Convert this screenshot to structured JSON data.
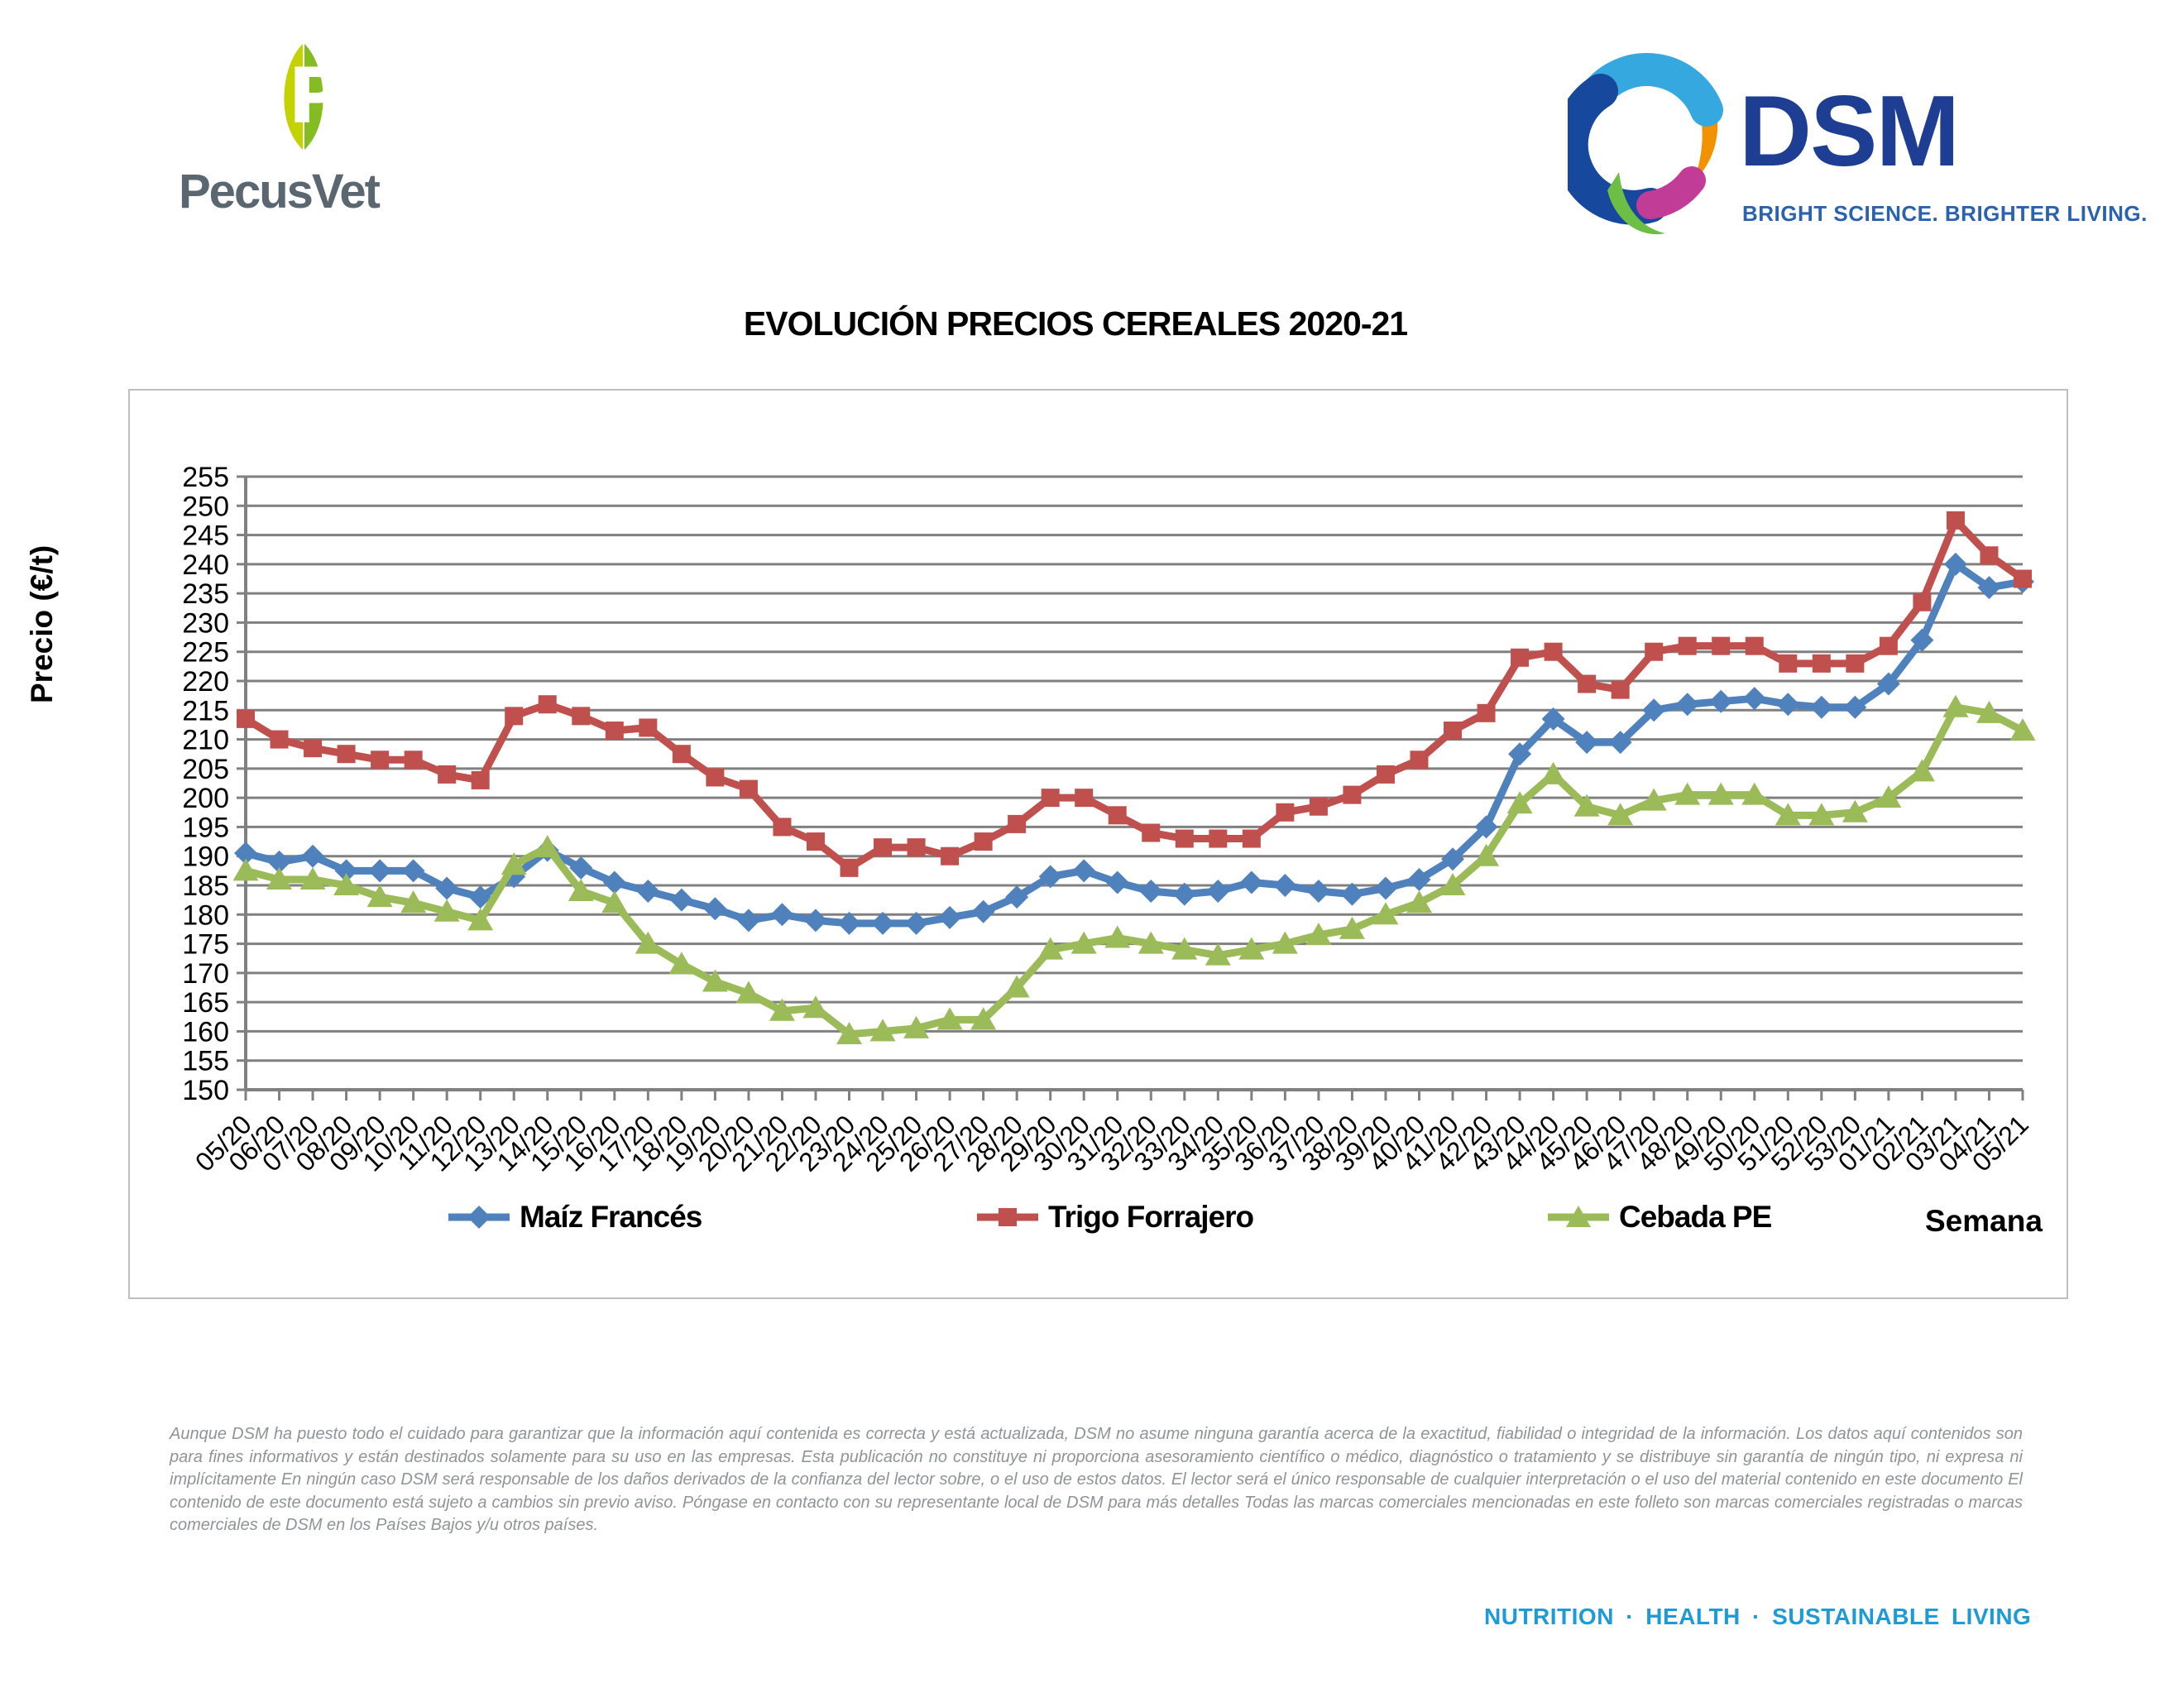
{
  "header": {
    "pecusvet": {
      "name": "PecusVet"
    },
    "dsm": {
      "name": "DSM",
      "tagline": "BRIGHT SCIENCE. BRIGHTER LIVING."
    }
  },
  "title": "EVOLUCIÓN PRECIOS CEREALES 2020-21",
  "chart_data": {
    "type": "line",
    "title": "EVOLUCIÓN PRECIOS CEREALES 2020-21",
    "xlabel": "Semana",
    "ylabel": "Precio (€/t)",
    "ylim": [
      150,
      255
    ],
    "ytick_step": 5,
    "grid": true,
    "legend_position": "bottom",
    "grid_color": "#808080",
    "categories": [
      "05/20",
      "06/20",
      "07/20",
      "08/20",
      "09/20",
      "10/20",
      "11/20",
      "12/20",
      "13/20",
      "14/20",
      "15/20",
      "16/20",
      "17/20",
      "18/20",
      "19/20",
      "20/20",
      "21/20",
      "22/20",
      "23/20",
      "24/20",
      "25/20",
      "26/20",
      "27/20",
      "28/20",
      "29/20",
      "30/20",
      "31/20",
      "32/20",
      "33/20",
      "34/20",
      "35/20",
      "36/20",
      "37/20",
      "38/20",
      "39/20",
      "40/20",
      "41/20",
      "42/20",
      "43/20",
      "44/20",
      "45/20",
      "46/20",
      "47/20",
      "48/20",
      "49/20",
      "50/20",
      "51/20",
      "52/20",
      "53/20",
      "01/21",
      "02/21",
      "03/21",
      "04/21",
      "05/21"
    ],
    "series": [
      {
        "name": "Maíz Francés",
        "color": "#4F81BD",
        "marker": "diamond",
        "values": [
          190.5,
          189,
          190,
          187.5,
          187.5,
          187.5,
          184.5,
          183,
          186.5,
          191,
          188,
          185.5,
          184,
          182.5,
          181,
          179,
          180,
          179,
          178.5,
          178.5,
          178.5,
          179.5,
          180.5,
          183,
          186.5,
          187.5,
          185.5,
          184,
          183.5,
          184,
          185.5,
          185,
          184,
          183.5,
          184.5,
          186,
          189.5,
          195,
          207.5,
          213.5,
          209.5,
          209.5,
          215,
          216,
          216.5,
          217,
          216,
          215.5,
          215.5,
          219.5,
          227,
          240,
          236,
          237
        ]
      },
      {
        "name": "Trigo Forrajero",
        "color": "#C0504D",
        "marker": "square",
        "values": [
          213.5,
          210,
          208.5,
          207.5,
          206.5,
          206.5,
          204,
          203,
          214,
          216,
          214,
          211.5,
          212,
          207.5,
          203.5,
          201.5,
          195,
          192.5,
          188,
          191.5,
          191.5,
          190,
          192.5,
          195.5,
          200,
          200,
          197,
          194,
          193,
          193,
          193,
          197.5,
          198.5,
          200.5,
          204,
          206.5,
          211.5,
          214.5,
          224,
          225,
          219.5,
          218.5,
          225,
          226,
          226,
          226,
          223,
          223,
          223,
          226,
          233.5,
          247.5,
          241.5,
          237.5
        ]
      },
      {
        "name": "Cebada PE",
        "color": "#9BBB59",
        "marker": "triangle",
        "values": [
          187.5,
          186,
          186,
          185,
          183,
          182,
          180.5,
          179,
          188.5,
          191.5,
          184,
          182,
          175,
          171.5,
          168.5,
          166.5,
          163.5,
          164,
          159.5,
          160,
          160.5,
          162,
          162,
          167.5,
          174,
          175,
          176,
          175,
          174,
          173,
          174,
          175,
          176.5,
          177.5,
          180,
          182,
          185,
          190,
          199,
          204,
          198.5,
          197,
          199.5,
          200.5,
          200.5,
          200.5,
          197,
          197,
          197.5,
          200,
          204.5,
          215.5,
          214.5,
          211.5
        ]
      }
    ]
  },
  "footer": {
    "disclaimer": "Aunque DSM ha puesto todo el cuidado para garantizar que la información aquí contenida es correcta y está actualizada, DSM no asume ninguna garantía acerca de la exactitud, fiabilidad o integridad de la información. Los datos aquí contenidos son para fines informativos y están destinados solamente para su uso en las empresas. Esta publicación no constituye ni proporciona asesoramiento científico o médico, diagnóstico o tratamiento y se distribuye sin garantía de ningún tipo, ni expresa ni implícitamente En ningún caso DSM será responsable de los daños derivados de la confianza del lector sobre, o el uso de estos datos. El lector será el único responsable de cualquier interpretación o el uso del material contenido en este documento El contenido de este documento está sujeto a cambios sin previo aviso. Póngase en contacto con su representante local de DSM para más detalles Todas las marcas comerciales mencionadas en este folleto son marcas comerciales registradas o marcas comerciales de DSM en los Países Bajos y/u otros países.",
    "tagline": "NUTRITION · HEALTH · SUSTAINABLE LIVING"
  }
}
